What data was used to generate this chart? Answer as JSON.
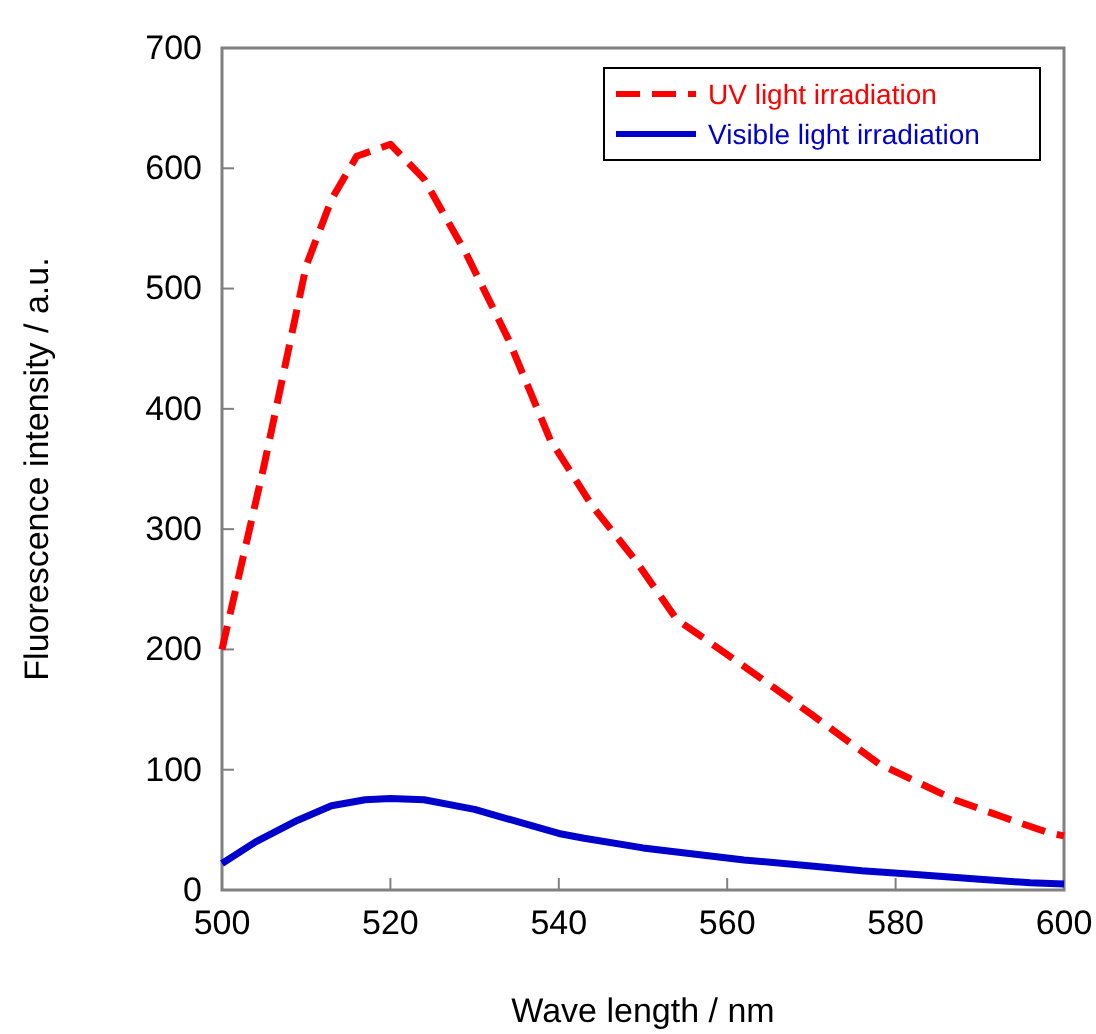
{
  "chart_data": {
    "type": "line",
    "xlabel": "Wave length / nm",
    "ylabel": "Fluorescence intensity / a.u.",
    "xlim": [
      500,
      600
    ],
    "ylim": [
      0,
      700
    ],
    "xticks": [
      500,
      520,
      540,
      560,
      580,
      600
    ],
    "yticks": [
      0,
      100,
      200,
      300,
      400,
      500,
      600,
      700
    ],
    "grid": false,
    "legend": "top right",
    "marker": "none",
    "series": [
      {
        "name": "UV light irradiation",
        "color": "#ff0000",
        "line_style": "dashed",
        "x": [
          500,
          505,
          510,
          513,
          516,
          520,
          524,
          529,
          534,
          539,
          544,
          549,
          554,
          562,
          570,
          578,
          587,
          593,
          598,
          600
        ],
        "values": [
          200,
          353,
          519,
          574,
          610,
          620,
          591,
          529,
          458,
          374,
          319,
          275,
          225,
          186,
          146,
          105,
          75,
          60,
          48,
          45
        ]
      },
      {
        "name": "Visible light irradiation",
        "color": "#0000cc",
        "line_style": "solid",
        "x": [
          500,
          504,
          509,
          513,
          517,
          520,
          524,
          530,
          535,
          540,
          543,
          550,
          556,
          562,
          570,
          576,
          582,
          590,
          596,
          600
        ],
        "values": [
          22,
          40,
          58,
          70,
          75,
          76,
          75,
          67,
          57,
          47,
          43,
          35,
          30,
          25,
          20,
          16,
          13,
          9,
          6,
          5
        ]
      }
    ]
  }
}
